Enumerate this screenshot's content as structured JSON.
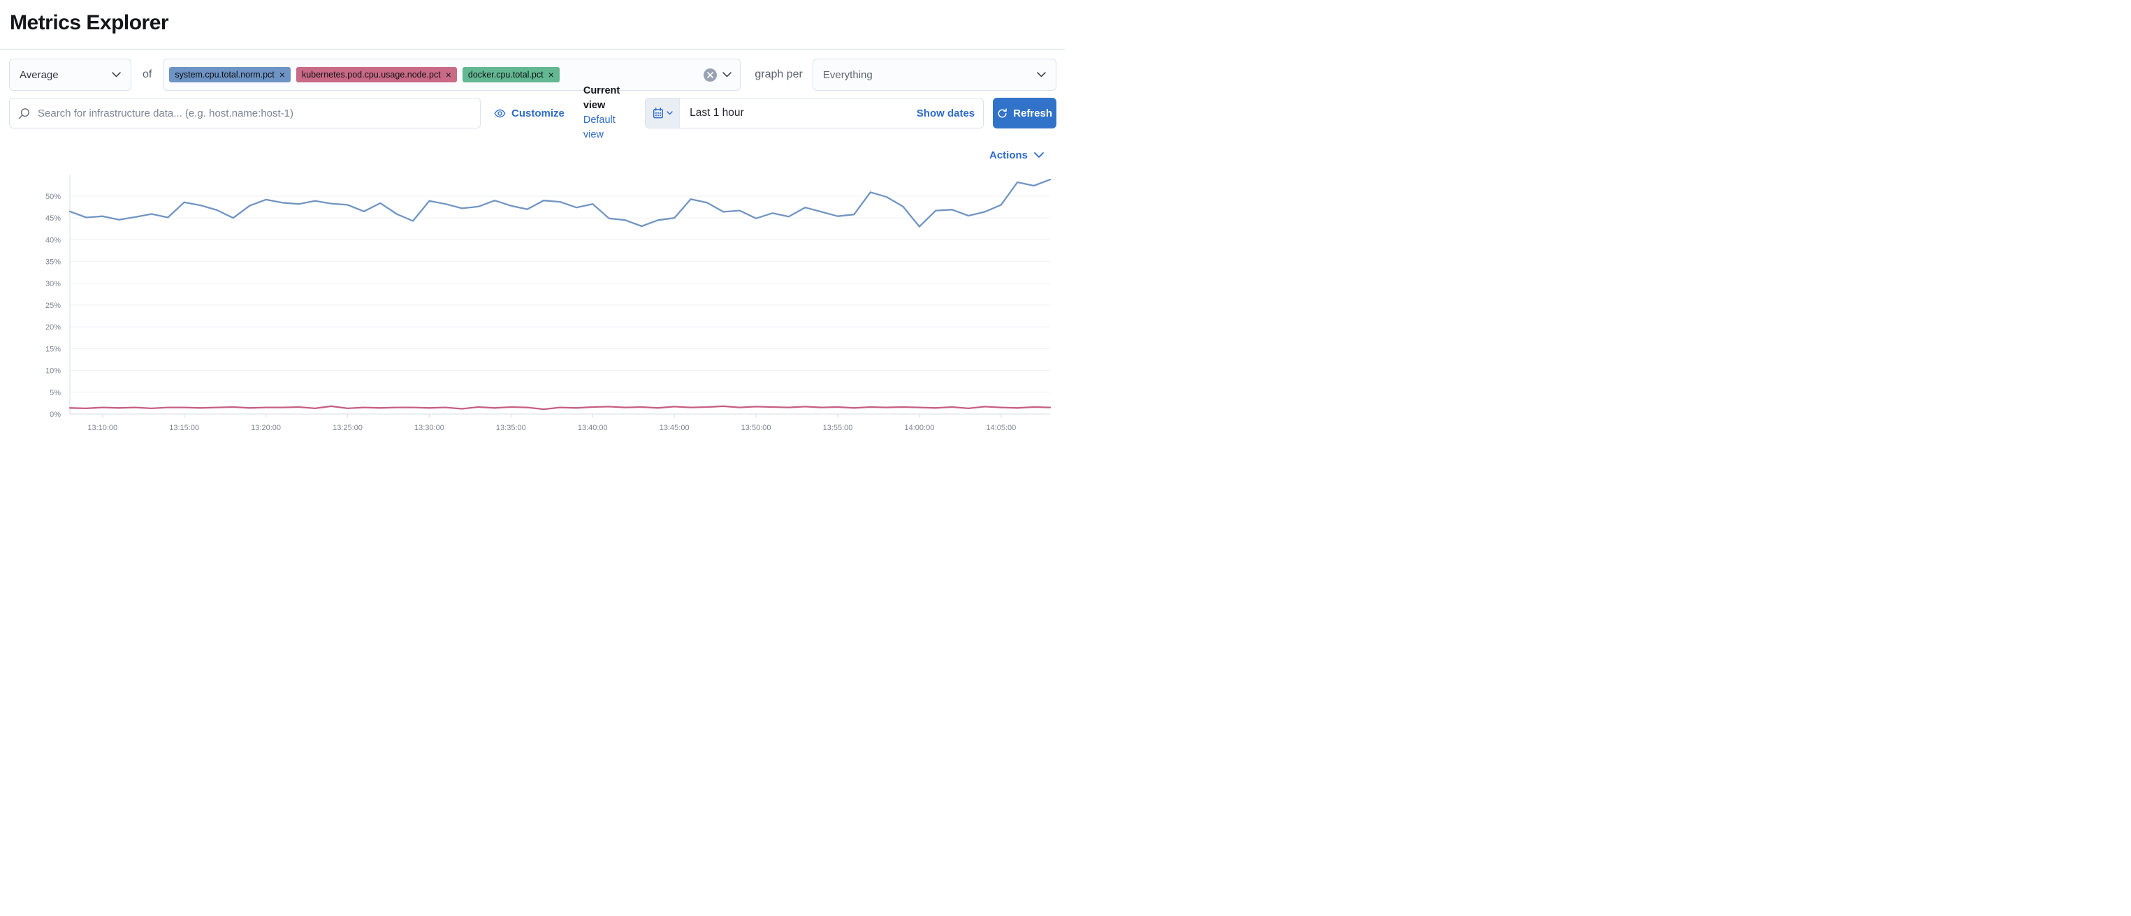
{
  "page": {
    "title": "Metrics Explorer"
  },
  "toolbar": {
    "aggregation": {
      "value": "Average"
    },
    "of_label": "of",
    "metrics": [
      {
        "label": "system.cpu.total.norm.pct",
        "remove_label": "×",
        "color": "#6d94c4"
      },
      {
        "label": "kubernetes.pod.cpu.usage.node.pct",
        "remove_label": "×",
        "color": "#c96a86"
      },
      {
        "label": "docker.cpu.total.pct",
        "remove_label": "×",
        "color": "#63b793"
      }
    ],
    "graph_per_label": "graph per",
    "group_by": {
      "value": "Everything"
    }
  },
  "search": {
    "placeholder": "Search for infrastructure data... (e.g. host.name:host-1)"
  },
  "view_controls": {
    "customize_label": "Customize",
    "current_view_label": "Current view",
    "default_view_label": "Default view"
  },
  "time_controls": {
    "range_label": "Last 1 hour",
    "show_dates_label": "Show dates",
    "refresh_label": "Refresh"
  },
  "actions": {
    "label": "Actions"
  },
  "icons": {
    "search": "magnifier",
    "customize": "eye",
    "time_picker": "calendar",
    "time_picker_caret": "chevron-down",
    "refresh": "refresh-arrow",
    "clear": "circled-x",
    "dropdown": "chevron-down"
  },
  "colors": {
    "primary_link": "#2e6bc9",
    "refresh_button": "#3173c9",
    "series_blue": "#7195c2",
    "series_red": "#c65e84",
    "axis_text": "#7d8492",
    "gridline": "#eef1f6",
    "axis_line": "#d7dce5"
  },
  "chart_data": {
    "type": "line",
    "title": "",
    "xlabel": "",
    "ylabel": "",
    "ylim": [
      0,
      54.8
    ],
    "grid": "horizontal",
    "legend": "none",
    "x": [
      "13:08:00",
      "13:09:00",
      "13:10:00",
      "13:11:00",
      "13:12:00",
      "13:13:00",
      "13:14:00",
      "13:15:00",
      "13:16:00",
      "13:17:00",
      "13:18:00",
      "13:19:00",
      "13:20:00",
      "13:21:00",
      "13:22:00",
      "13:23:00",
      "13:24:00",
      "13:25:00",
      "13:26:00",
      "13:27:00",
      "13:28:00",
      "13:29:00",
      "13:30:00",
      "13:31:00",
      "13:32:00",
      "13:33:00",
      "13:34:00",
      "13:35:00",
      "13:36:00",
      "13:37:00",
      "13:38:00",
      "13:39:00",
      "13:40:00",
      "13:41:00",
      "13:42:00",
      "13:43:00",
      "13:44:00",
      "13:45:00",
      "13:46:00",
      "13:47:00",
      "13:48:00",
      "13:49:00",
      "13:50:00",
      "13:51:00",
      "13:52:00",
      "13:53:00",
      "13:54:00",
      "13:55:00",
      "13:56:00",
      "13:57:00",
      "13:58:00",
      "13:59:00",
      "14:00:00",
      "14:01:00",
      "14:02:00",
      "14:03:00",
      "14:04:00",
      "14:05:00",
      "14:06:00",
      "14:07:00",
      "14:08:00"
    ],
    "x_ticks": [
      {
        "i": 2,
        "label": "13:10:00"
      },
      {
        "i": 7,
        "label": "13:15:00"
      },
      {
        "i": 12,
        "label": "13:20:00"
      },
      {
        "i": 17,
        "label": "13:25:00"
      },
      {
        "i": 22,
        "label": "13:30:00"
      },
      {
        "i": 27,
        "label": "13:35:00"
      },
      {
        "i": 32,
        "label": "13:40:00"
      },
      {
        "i": 37,
        "label": "13:45:00"
      },
      {
        "i": 42,
        "label": "13:50:00"
      },
      {
        "i": 47,
        "label": "13:55:00"
      },
      {
        "i": 52,
        "label": "14:00:00"
      },
      {
        "i": 57,
        "label": "14:05:00"
      }
    ],
    "y_ticks": [
      {
        "v": 0,
        "label": "0%"
      },
      {
        "v": 5,
        "label": "5%"
      },
      {
        "v": 10,
        "label": "10%"
      },
      {
        "v": 15,
        "label": "15%"
      },
      {
        "v": 20,
        "label": "20%"
      },
      {
        "v": 25,
        "label": "25%"
      },
      {
        "v": 30,
        "label": "30%"
      },
      {
        "v": 35,
        "label": "35%"
      },
      {
        "v": 40,
        "label": "40%"
      },
      {
        "v": 45,
        "label": "45%"
      },
      {
        "v": 50,
        "label": "50%"
      }
    ],
    "series": [
      {
        "name": "system.cpu.total.norm.pct",
        "color": "#7195c2",
        "values": [
          46.5,
          45.1,
          45.4,
          44.6,
          45.2,
          45.9,
          45.1,
          48.6,
          47.9,
          46.8,
          45.0,
          47.8,
          49.2,
          48.5,
          48.2,
          48.9,
          48.3,
          48.0,
          46.5,
          48.4,
          45.9,
          44.3,
          48.9,
          48.2,
          47.2,
          47.6,
          49.0,
          47.8,
          47.0,
          49.0,
          48.7,
          47.4,
          48.2,
          44.9,
          44.5,
          43.1,
          44.5,
          45.0,
          49.3,
          48.5,
          46.4,
          46.7,
          44.9,
          46.1,
          45.3,
          47.4,
          46.4,
          45.4,
          45.8,
          50.9,
          49.8,
          47.6,
          43.0,
          46.7,
          46.9,
          45.5,
          46.4,
          48.0,
          53.2,
          52.4,
          53.8
        ]
      },
      {
        "name": "kubernetes.pod.cpu.usage.node.pct",
        "color": "#c65e84",
        "values": [
          1.4,
          1.3,
          1.5,
          1.4,
          1.5,
          1.3,
          1.5,
          1.5,
          1.4,
          1.5,
          1.6,
          1.4,
          1.5,
          1.5,
          1.6,
          1.3,
          1.8,
          1.3,
          1.5,
          1.4,
          1.5,
          1.5,
          1.4,
          1.5,
          1.2,
          1.6,
          1.4,
          1.6,
          1.5,
          1.1,
          1.5,
          1.4,
          1.6,
          1.7,
          1.5,
          1.6,
          1.4,
          1.7,
          1.5,
          1.6,
          1.8,
          1.5,
          1.7,
          1.6,
          1.5,
          1.7,
          1.5,
          1.6,
          1.4,
          1.6,
          1.5,
          1.6,
          1.5,
          1.4,
          1.6,
          1.3,
          1.7,
          1.5,
          1.4,
          1.6,
          1.5
        ]
      }
    ]
  }
}
